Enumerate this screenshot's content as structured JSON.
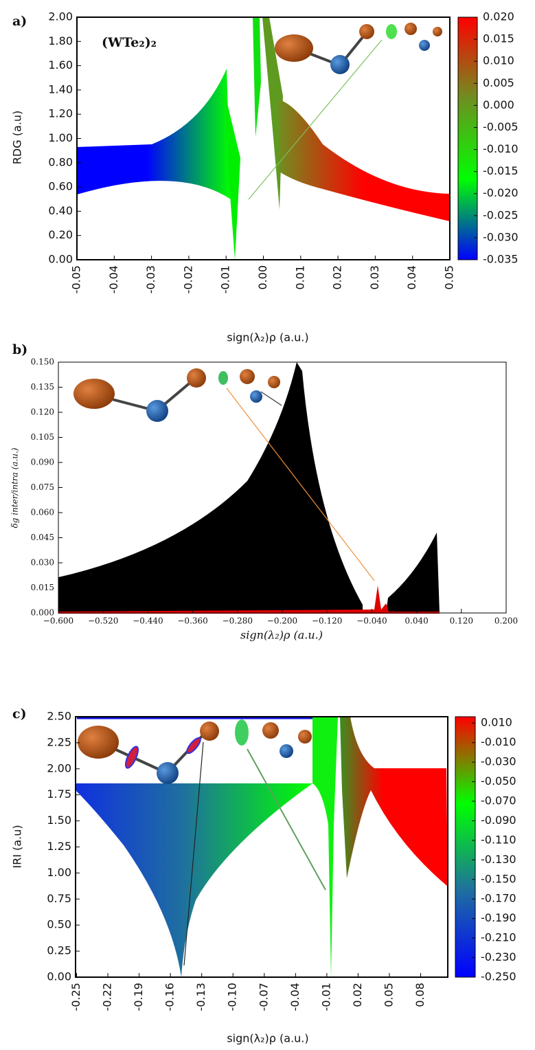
{
  "chart_data": [
    {
      "type": "scatter",
      "panel_label": "a)",
      "title": "(WTe₂)₂",
      "xlabel": "sign(λ₂)ρ (a.u.)",
      "ylabel": "RDG (a.u)",
      "xlim": [
        -0.05,
        0.05
      ],
      "ylim": [
        0,
        2
      ],
      "xticks": [
        -0.05,
        -0.04,
        -0.03,
        -0.02,
        -0.01,
        {
          "value": 0,
          "label": "0.00"
        },
        0.01,
        0.02,
        0.03,
        0.04,
        0.05
      ],
      "yticks": [
        {
          "value": 0,
          "label": "0.00"
        },
        {
          "value": 0.2,
          "label": "0.20"
        },
        {
          "value": 0.4,
          "label": "0.40"
        },
        {
          "value": 0.6,
          "label": "0.60"
        },
        {
          "value": 0.8,
          "label": "0.80"
        },
        {
          "value": 1,
          "label": "1.00"
        },
        {
          "value": 1.2,
          "label": "1.20"
        },
        {
          "value": 1.4,
          "label": "1.40"
        },
        {
          "value": 1.6,
          "label": "1.60"
        },
        {
          "value": 1.8,
          "label": "1.80"
        },
        {
          "value": 2,
          "label": "2.00"
        }
      ],
      "colorbar": {
        "lim": [
          -0.035,
          0.02
        ],
        "colors": [
          "#0000ff",
          "#00ff00",
          "#6f8f20",
          "#ff0000"
        ],
        "ticks": [
          {
            "value": 0.02,
            "label": "0.020"
          },
          0.015,
          {
            "value": 0.01,
            "label": "0.010"
          },
          0.005,
          {
            "value": 0,
            "label": "0.000"
          },
          -0.005,
          {
            "value": -0.01,
            "label": "-0.010"
          },
          -0.015,
          {
            "value": -0.02,
            "label": "-0.020"
          },
          -0.025,
          {
            "value": -0.03,
            "label": "-0.030"
          },
          -0.035
        ]
      }
    },
    {
      "type": "scatter",
      "panel_label": "b)",
      "xlabel": "sign(λ₂)ρ (a.u.)",
      "ylabel": "δg inter/intra (a.u.)",
      "xlim": [
        -0.6,
        0.2
      ],
      "ylim": [
        0,
        0.15
      ],
      "xticks": [
        {
          "value": -0.6,
          "label": "−0.600"
        },
        {
          "value": -0.52,
          "label": "−0.520"
        },
        {
          "value": -0.44,
          "label": "−0.440"
        },
        {
          "value": -0.36,
          "label": "−0.360"
        },
        {
          "value": -0.28,
          "label": "−0.280"
        },
        {
          "value": -0.2,
          "label": "−0.200"
        },
        {
          "value": -0.12,
          "label": "−0.120"
        },
        {
          "value": -0.04,
          "label": "−0.040"
        },
        {
          "value": 0.04,
          "label": "0.040"
        },
        {
          "value": 0.12,
          "label": "0.120"
        },
        {
          "value": 0.2,
          "label": "0.200"
        }
      ],
      "yticks": [
        {
          "value": 0,
          "label": "0.000"
        },
        0.015,
        {
          "value": 0.03,
          "label": "0.030"
        },
        0.045,
        {
          "value": 0.06,
          "label": "0.060"
        },
        0.075,
        {
          "value": 0.09,
          "label": "0.090"
        },
        0.105,
        {
          "value": 0.12,
          "label": "0.120"
        },
        0.135,
        {
          "value": 0.15,
          "label": "0.150"
        }
      ]
    },
    {
      "type": "scatter",
      "panel_label": "c)",
      "xlabel": "sign(λ₂)ρ (a.u.)",
      "ylabel": "IRI (a.u)",
      "xlim": [
        -0.251,
        0.106
      ],
      "ylim": [
        0,
        2.5
      ],
      "xticks": [
        -0.25,
        -0.22,
        -0.19,
        -0.16,
        -0.13,
        {
          "value": -0.1,
          "label": "-0.10"
        },
        -0.07,
        -0.04,
        -0.01,
        0.02,
        0.05,
        0.08
      ],
      "yticks": [
        {
          "value": 0,
          "label": "0.00"
        },
        0.25,
        {
          "value": 0.5,
          "label": "0.50"
        },
        0.75,
        {
          "value": 1,
          "label": "1.00"
        },
        1.25,
        {
          "value": 1.5,
          "label": "1.50"
        },
        1.75,
        {
          "value": 2,
          "label": "2.00"
        },
        2.25,
        {
          "value": 2.5,
          "label": "2.50"
        }
      ],
      "colorbar": {
        "lim": [
          -0.25,
          0.0165
        ],
        "colors": [
          "#0000ff",
          "#1f6f9f",
          "#00ff00",
          "#ff0000"
        ],
        "ticks": [
          {
            "value": 0.01,
            "label": "0.010"
          },
          {
            "value": -0.01,
            "label": "-0.010"
          },
          {
            "value": -0.03,
            "label": "-0.030"
          },
          {
            "value": -0.05,
            "label": "-0.050"
          },
          {
            "value": -0.07,
            "label": "-0.070"
          },
          {
            "value": -0.09,
            "label": "-0.090"
          },
          {
            "value": -0.11,
            "label": "-0.110"
          },
          {
            "value": -0.13,
            "label": "-0.130"
          },
          {
            "value": -0.15,
            "label": "-0.150"
          },
          {
            "value": -0.17,
            "label": "-0.170"
          },
          {
            "value": -0.19,
            "label": "-0.190"
          },
          {
            "value": -0.21,
            "label": "-0.210"
          },
          {
            "value": -0.23,
            "label": "-0.230"
          },
          {
            "value": -0.25,
            "label": "-0.250"
          }
        ]
      }
    }
  ]
}
